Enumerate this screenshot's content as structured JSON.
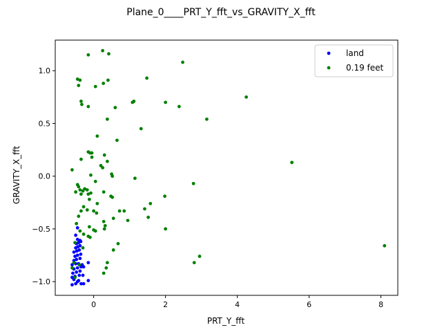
{
  "chart_data": {
    "type": "scatter",
    "title": "Plane_0____PRT_Y_fft_vs_GRAVITY_X_fft",
    "xlabel": "PRT_Y_fft",
    "ylabel": "GRAVITY_X_fft",
    "xlim": [
      -1.07,
      8.47
    ],
    "ylim": [
      -1.13,
      1.29
    ],
    "xticks": [
      {
        "v": 0,
        "label": "0"
      },
      {
        "v": 2,
        "label": "2"
      },
      {
        "v": 4,
        "label": "4"
      },
      {
        "v": 6,
        "label": "6"
      },
      {
        "v": 8,
        "label": "8"
      }
    ],
    "yticks": [
      {
        "v": -1.0,
        "label": "−1.0"
      },
      {
        "v": -0.5,
        "label": "−0.5"
      },
      {
        "v": 0.0,
        "label": "0.0"
      },
      {
        "v": 0.5,
        "label": "0.5"
      },
      {
        "v": 1.0,
        "label": "1.0"
      }
    ],
    "grid": false,
    "legend_position": "top-right",
    "series": [
      {
        "name": "land",
        "color": "#0000ff",
        "points": [
          [
            -0.6,
            -1.03
          ],
          [
            -0.5,
            -1.02
          ],
          [
            -0.45,
            -1.0
          ],
          [
            -0.35,
            -1.02
          ],
          [
            -0.28,
            -1.02
          ],
          [
            -0.55,
            -0.98
          ],
          [
            -0.42,
            -0.99
          ],
          [
            -0.15,
            -0.99
          ],
          [
            -0.6,
            -0.96
          ],
          [
            -0.52,
            -0.95
          ],
          [
            -0.4,
            -0.94
          ],
          [
            -0.3,
            -0.94
          ],
          [
            -0.58,
            -0.92
          ],
          [
            -0.48,
            -0.91
          ],
          [
            -0.38,
            -0.9
          ],
          [
            -0.55,
            -0.88
          ],
          [
            -0.45,
            -0.87
          ],
          [
            -0.35,
            -0.86
          ],
          [
            -0.28,
            -0.86
          ],
          [
            -0.6,
            -0.84
          ],
          [
            -0.5,
            -0.83
          ],
          [
            -0.42,
            -0.83
          ],
          [
            -0.32,
            -0.84
          ],
          [
            -0.15,
            -0.82
          ],
          [
            -0.55,
            -0.8
          ],
          [
            -0.48,
            -0.79
          ],
          [
            -0.38,
            -0.78
          ],
          [
            -0.52,
            -0.76
          ],
          [
            -0.45,
            -0.75
          ],
          [
            -0.36,
            -0.74
          ],
          [
            -0.55,
            -0.72
          ],
          [
            -0.47,
            -0.71
          ],
          [
            -0.4,
            -0.7
          ],
          [
            -0.5,
            -0.68
          ],
          [
            -0.44,
            -0.67
          ],
          [
            -0.38,
            -0.66
          ],
          [
            -0.48,
            -0.64
          ],
          [
            -0.42,
            -0.63
          ],
          [
            -0.36,
            -0.62
          ],
          [
            -0.45,
            -0.6
          ],
          [
            -0.38,
            -0.61
          ],
          [
            -0.5,
            -0.56
          ],
          [
            -0.45,
            -0.49
          ]
        ]
      },
      {
        "name": "0.19 feet",
        "color": "#008000",
        "points": [
          [
            0.25,
            1.19
          ],
          [
            -0.15,
            1.15
          ],
          [
            0.42,
            1.16
          ],
          [
            2.48,
            1.08
          ],
          [
            -0.45,
            0.92
          ],
          [
            -0.38,
            0.91
          ],
          [
            0.4,
            0.91
          ],
          [
            1.48,
            0.93
          ],
          [
            0.27,
            0.88
          ],
          [
            -0.42,
            0.86
          ],
          [
            0.05,
            0.85
          ],
          [
            -0.35,
            0.71
          ],
          [
            1.12,
            0.71
          ],
          [
            1.08,
            0.7
          ],
          [
            2.0,
            0.7
          ],
          [
            -0.33,
            0.68
          ],
          [
            -0.15,
            0.66
          ],
          [
            0.6,
            0.65
          ],
          [
            2.38,
            0.66
          ],
          [
            4.25,
            0.75
          ],
          [
            3.15,
            0.54
          ],
          [
            0.38,
            0.54
          ],
          [
            1.32,
            0.45
          ],
          [
            0.1,
            0.38
          ],
          [
            0.65,
            0.34
          ],
          [
            -0.15,
            0.23
          ],
          [
            -0.1,
            0.22
          ],
          [
            -0.05,
            0.22
          ],
          [
            0.3,
            0.2
          ],
          [
            -0.05,
            0.18
          ],
          [
            -0.35,
            0.16
          ],
          [
            0.38,
            0.14
          ],
          [
            5.52,
            0.13
          ],
          [
            0.2,
            0.1
          ],
          [
            0.25,
            0.08
          ],
          [
            -0.6,
            0.06
          ],
          [
            0.5,
            0.02
          ],
          [
            -0.08,
            0.01
          ],
          [
            0.52,
            0.0
          ],
          [
            1.15,
            -0.02
          ],
          [
            0.05,
            -0.05
          ],
          [
            2.78,
            -0.07
          ],
          [
            -0.45,
            -0.08
          ],
          [
            -0.42,
            -0.1
          ],
          [
            -0.25,
            -0.12
          ],
          [
            -0.38,
            -0.13
          ],
          [
            -0.18,
            -0.13
          ],
          [
            -0.3,
            -0.14
          ],
          [
            0.28,
            -0.15
          ],
          [
            -0.5,
            -0.15
          ],
          [
            -0.15,
            -0.17
          ],
          [
            -0.08,
            -0.16
          ],
          [
            -0.35,
            -0.17
          ],
          [
            0.48,
            -0.19
          ],
          [
            0.52,
            -0.2
          ],
          [
            1.98,
            -0.19
          ],
          [
            -0.12,
            -0.22
          ],
          [
            1.58,
            -0.26
          ],
          [
            0.1,
            -0.26
          ],
          [
            -0.28,
            -0.29
          ],
          [
            1.42,
            -0.31
          ],
          [
            -0.35,
            -0.33
          ],
          [
            -0.18,
            -0.32
          ],
          [
            0.0,
            -0.33
          ],
          [
            0.72,
            -0.33
          ],
          [
            0.85,
            -0.33
          ],
          [
            0.08,
            -0.35
          ],
          [
            -0.42,
            -0.38
          ],
          [
            0.55,
            -0.4
          ],
          [
            0.95,
            -0.42
          ],
          [
            1.52,
            -0.39
          ],
          [
            0.28,
            -0.43
          ],
          [
            -0.48,
            -0.45
          ],
          [
            -0.12,
            -0.48
          ],
          [
            0.32,
            -0.47
          ],
          [
            0.3,
            -0.5
          ],
          [
            2.0,
            -0.5
          ],
          [
            0.0,
            -0.51
          ],
          [
            -0.38,
            -0.52
          ],
          [
            0.05,
            -0.52
          ],
          [
            -0.28,
            -0.55
          ],
          [
            -0.15,
            -0.57
          ],
          [
            -0.1,
            -0.58
          ],
          [
            -0.52,
            -0.63
          ],
          [
            0.68,
            -0.64
          ],
          [
            8.1,
            -0.66
          ],
          [
            -0.3,
            -0.68
          ],
          [
            0.55,
            -0.7
          ],
          [
            2.95,
            -0.76
          ],
          [
            -0.55,
            -0.82
          ],
          [
            0.38,
            -0.82
          ],
          [
            2.8,
            -0.82
          ],
          [
            -0.6,
            -0.87
          ],
          [
            0.35,
            -0.87
          ],
          [
            0.28,
            -0.92
          ],
          [
            -0.52,
            -0.96
          ],
          [
            -0.4,
            -0.84
          ]
        ]
      }
    ]
  }
}
